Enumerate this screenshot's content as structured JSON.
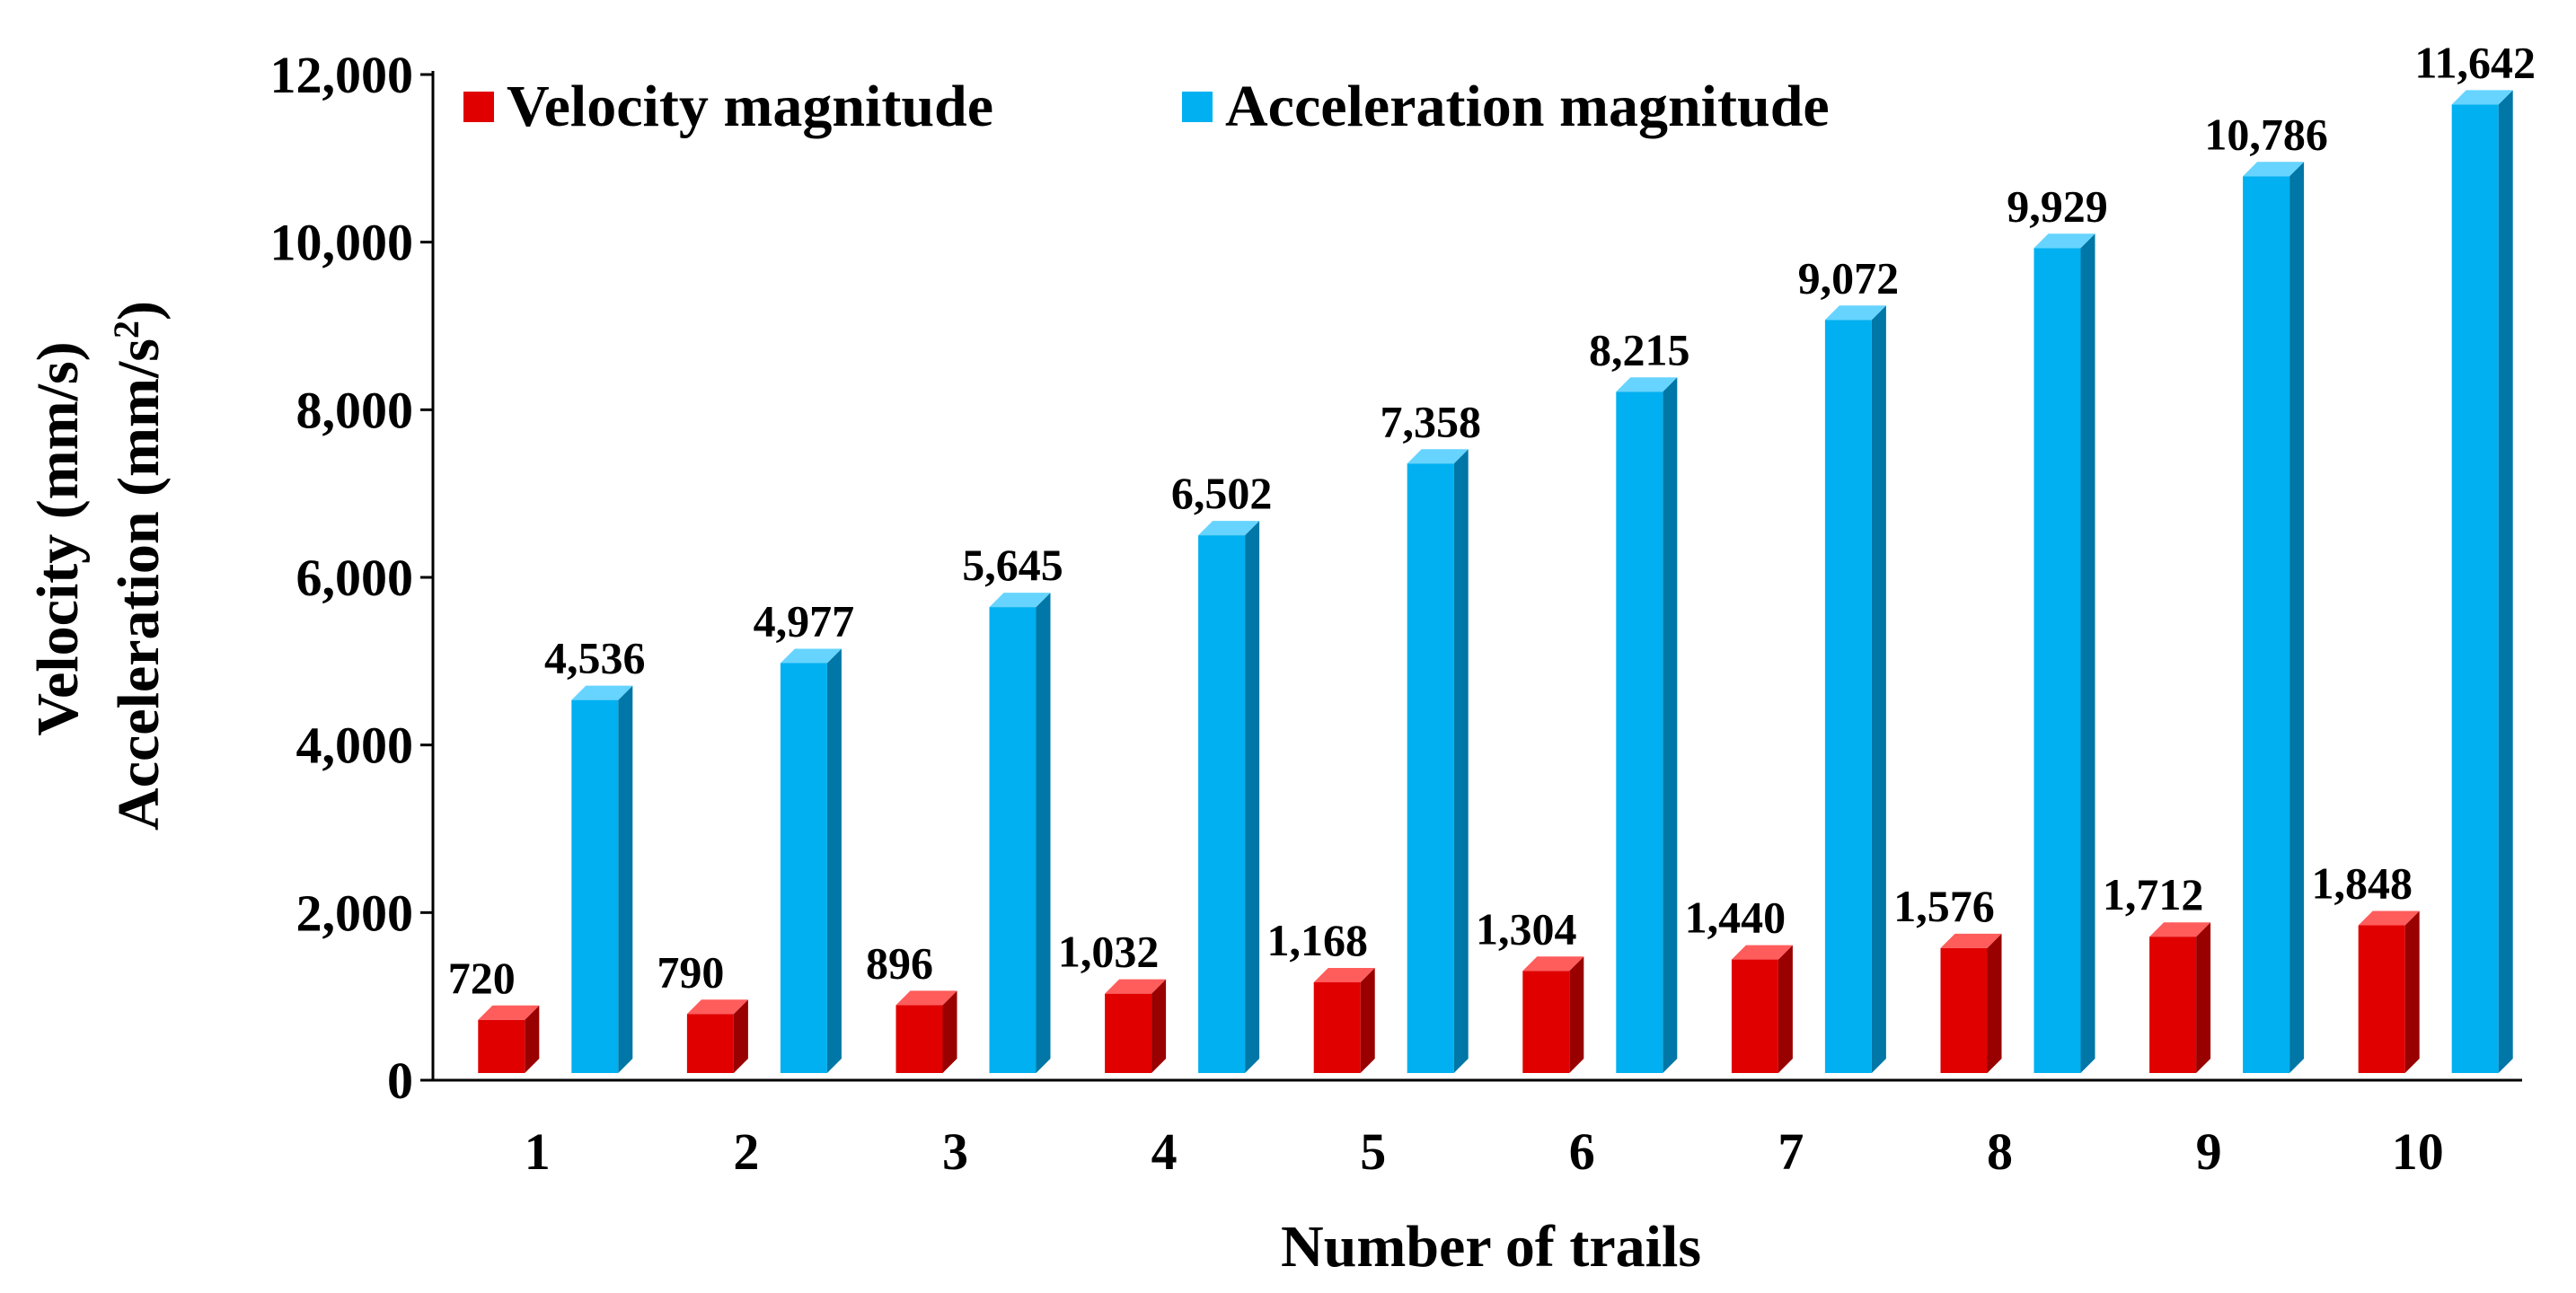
{
  "chart_data": {
    "type": "bar",
    "xlabel": "Number of trails",
    "ylabel_lines": [
      "Velocity (mm/s)",
      "Acceleration (mm/s",
      "2",
      ")"
    ],
    "categories": [
      "1",
      "2",
      "3",
      "4",
      "5",
      "6",
      "7",
      "8",
      "9",
      "10"
    ],
    "ylim": [
      0,
      12000
    ],
    "yticks": [
      0,
      2000,
      4000,
      6000,
      8000,
      10000,
      12000
    ],
    "ytick_labels": [
      "0",
      "2,000",
      "4,000",
      "6,000",
      "8,000",
      "10,000",
      "12,000"
    ],
    "legend_position": "top-left",
    "grid": false,
    "series": [
      {
        "name": "Velocity magnitude",
        "color": "#E00000",
        "side_color": "#990000",
        "top_color": "#FF5C5C",
        "values": [
          720,
          790,
          896,
          1032,
          1168,
          1304,
          1440,
          1576,
          1712,
          1848
        ],
        "labels": [
          "720",
          "790",
          "896",
          "1,032",
          "1,168",
          "1,304",
          "1,440",
          "1,576",
          "1,712",
          "1,848"
        ]
      },
      {
        "name": "Acceleration magnitude",
        "color": "#00B0F0",
        "side_color": "#0077A6",
        "top_color": "#66D4FF",
        "values": [
          4536,
          4977,
          5645,
          6502,
          7358,
          8215,
          9072,
          9929,
          10786,
          11642
        ],
        "labels": [
          "4,536",
          "4,977",
          "5,645",
          "6,502",
          "7,358",
          "8,215",
          "9,072",
          "9,929",
          "10,786",
          "11,642"
        ]
      }
    ]
  }
}
